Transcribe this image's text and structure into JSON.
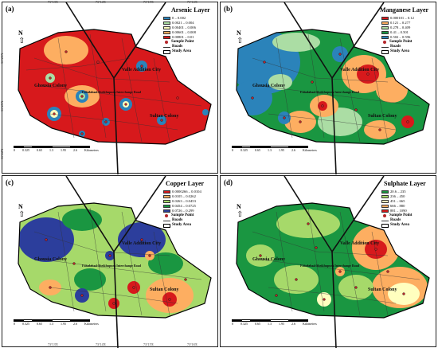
{
  "ticks": {
    "top": [
      "73°13'E",
      "73°14'E",
      "73°15'E",
      "73°16'E"
    ],
    "bottom": [
      "73°13'E",
      "73°14'E",
      "73°15'E",
      "73°16'E"
    ],
    "side": [
      "31°26'N",
      "31°25'N",
      "31°24'N"
    ]
  },
  "north_label": "N",
  "scale": {
    "labels": [
      "0",
      "0.325",
      "0.65",
      "1.3",
      "1.95",
      "2.6"
    ],
    "unit": "Kilometers"
  },
  "town_labels": {
    "valle": "Valle Addition City",
    "ghousia": "Ghousia Colony",
    "sultan": "Sultan Colony",
    "road": "Faisalabad-Sheikhupura Interchange Road"
  },
  "legend_common": {
    "sample_point": "Sample Point",
    "roads": "Roads",
    "study_area": "Study Area"
  },
  "panels": [
    {
      "label": "(a)",
      "title": "Arsenic Layer",
      "classes": [
        {
          "range": "0 – 0.002",
          "color": "#2b83ba"
        },
        {
          "range": "0.0021 – 0.004",
          "color": "#abdda4"
        },
        {
          "range": "0.00401 – 0.006",
          "color": "#ffffbf"
        },
        {
          "range": "0.00601 – 0.008",
          "color": "#fdae61"
        },
        {
          "range": "0.00801 – 0.01",
          "color": "#d7191c"
        }
      ]
    },
    {
      "label": "(b)",
      "title": "Manganese Layer",
      "classes": [
        {
          "range": "0.000101 – 0.12",
          "color": "#d7191c"
        },
        {
          "range": "0.121 – 0.277",
          "color": "#fdae61"
        },
        {
          "range": "0.278 – 0.409",
          "color": "#abdda4"
        },
        {
          "range": "0.41 – 0.501",
          "color": "#1a9641"
        },
        {
          "range": "0.502 – 0.596",
          "color": "#2b83ba"
        }
      ]
    },
    {
      "label": "(c)",
      "title": "Copper Layer",
      "classes": [
        {
          "range": "0.0000266 – 0.0104",
          "color": "#d7191c"
        },
        {
          "range": "0.0105 – 0.0262",
          "color": "#fdae61"
        },
        {
          "range": "0.0263 – 0.0453",
          "color": "#a6d96a"
        },
        {
          "range": "0.0454 – 0.0725",
          "color": "#1a9641"
        },
        {
          "range": "0.0726 – 0.299",
          "color": "#2c3e9c"
        }
      ]
    },
    {
      "label": "(d)",
      "title": "Sulphate Layer",
      "classes": [
        {
          "range": "20.6 – 235",
          "color": "#1a9641"
        },
        {
          "range": "236 – 450",
          "color": "#a6d96a"
        },
        {
          "range": "451 – 665",
          "color": "#ffffbf"
        },
        {
          "range": "666 – 880",
          "color": "#fdae61"
        },
        {
          "range": "881 – 1090",
          "color": "#d7191c"
        }
      ]
    }
  ]
}
